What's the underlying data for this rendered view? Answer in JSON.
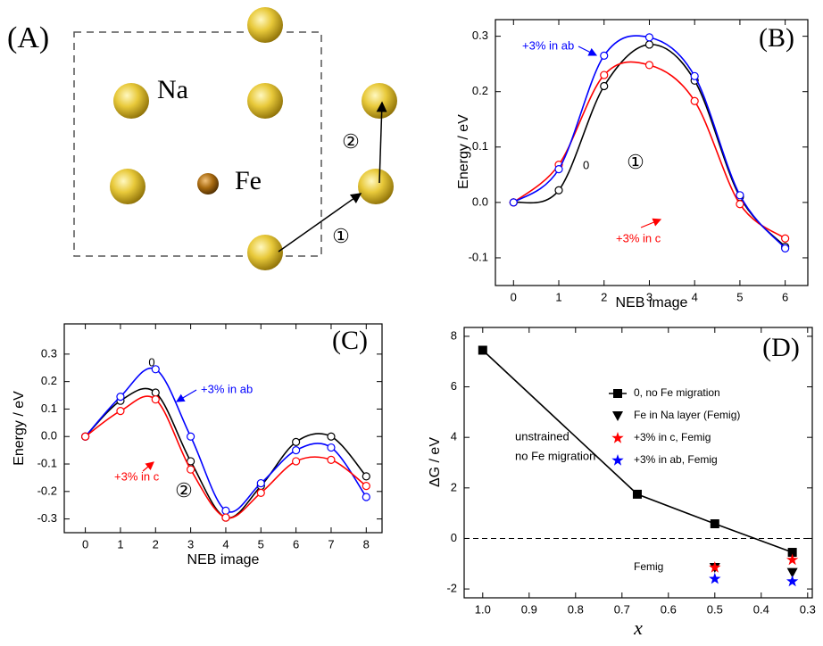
{
  "diagram": {
    "panel_label": "(A)",
    "na_label": "Na",
    "fe_label": "Fe",
    "steps": [
      "①",
      "②"
    ]
  },
  "chart_data": [
    {
      "type": "line",
      "title": "(B)",
      "xlabel": "NEB image",
      "ylabel": "Energy / eV",
      "x": [
        0,
        1,
        2,
        3,
        4,
        5,
        6
      ],
      "xlim": [
        -0.4,
        6.5
      ],
      "ylim": [
        -0.15,
        0.33
      ],
      "xticks": [
        0,
        1,
        2,
        3,
        4,
        5,
        6
      ],
      "yticks": [
        -0.1,
        {
          "value": 0,
          "label": "0.0"
        },
        0.1,
        0.2,
        0.3
      ],
      "curve": "smooth",
      "marker": "circle-open",
      "series": [
        {
          "name": "0",
          "color": "#000000",
          "values": [
            0,
            0.022,
            0.21,
            0.285,
            0.22,
            0.01,
            -0.08
          ]
        },
        {
          "name": "+3% in c",
          "color": "#ff0000",
          "values": [
            0,
            0.068,
            0.23,
            0.248,
            0.183,
            -0.003,
            -0.065
          ]
        },
        {
          "name": "+3% in ab",
          "color": "#0000ff",
          "values": [
            0,
            0.06,
            0.265,
            0.298,
            0.228,
            0.013,
            -0.083
          ]
        }
      ],
      "annotations": [
        "①"
      ]
    },
    {
      "type": "line",
      "title": "(C)",
      "xlabel": "NEB image",
      "ylabel": "Energy / eV",
      "x": [
        0,
        1,
        2,
        3,
        4,
        5,
        6,
        7,
        8
      ],
      "xlim": [
        -0.6,
        8.45
      ],
      "ylim": [
        -0.35,
        0.41
      ],
      "xticks": [
        0,
        1,
        2,
        3,
        4,
        5,
        6,
        7,
        8
      ],
      "yticks": [
        -0.3,
        -0.2,
        -0.1,
        {
          "value": 0,
          "label": "0.0"
        },
        0.1,
        0.2,
        0.3
      ],
      "curve": "smooth",
      "marker": "circle-open",
      "series": [
        {
          "name": "0",
          "color": "#000000",
          "values": [
            0,
            0.13,
            0.16,
            -0.09,
            -0.295,
            -0.18,
            -0.02,
            0.0,
            -0.145
          ]
        },
        {
          "name": "+3% in ab",
          "color": "#0000ff",
          "values": [
            0,
            0.145,
            0.245,
            0.0,
            -0.27,
            -0.17,
            -0.05,
            -0.04,
            -0.22
          ]
        },
        {
          "name": "+3% in c",
          "color": "#ff0000",
          "values": [
            0,
            0.093,
            0.135,
            -0.12,
            -0.295,
            -0.205,
            -0.09,
            -0.085,
            -0.18
          ]
        }
      ],
      "annotations": [
        "②"
      ]
    },
    {
      "type": "line",
      "title": "(D)",
      "xlabel": "x",
      "ylabel": "ΔG / eV",
      "xlim": [
        1.04,
        0.29
      ],
      "ylim": [
        -2.35,
        8.35
      ],
      "xticks": [
        {
          "value": 1,
          "label": "1.0"
        },
        0.9,
        0.8,
        0.7,
        0.6,
        0.5,
        0.4,
        0.3
      ],
      "yticks": [
        -2,
        0,
        2,
        4,
        6,
        8
      ],
      "hline": 0,
      "legend": "upper right",
      "series": [
        {
          "name": "0, no Fe migration",
          "color": "#000000",
          "marker": "square",
          "curve": "straight",
          "x": [
            1.0,
            0.667,
            0.5,
            0.333
          ],
          "values": [
            7.45,
            1.75,
            0.58,
            -0.55
          ]
        },
        {
          "name": "Fe in Na layer (Femig)",
          "color": "#000000",
          "marker": "triangle-down",
          "curve": "none",
          "x": [
            0.5,
            0.333
          ],
          "values": [
            -1.15,
            -1.35
          ]
        },
        {
          "name": "+3% in c, Femig",
          "color": "#ff0000",
          "marker": "star",
          "curve": "none",
          "x": [
            0.5,
            0.333
          ],
          "values": [
            -1.15,
            -0.85
          ]
        },
        {
          "name": "+3% in ab, Femig",
          "color": "#0000ff",
          "marker": "star",
          "curve": "none",
          "x": [
            0.5,
            0.333
          ],
          "values": [
            -1.6,
            -1.7
          ]
        }
      ],
      "annotations": [
        "unstrained",
        "no Fe migration",
        "Femig"
      ]
    }
  ]
}
